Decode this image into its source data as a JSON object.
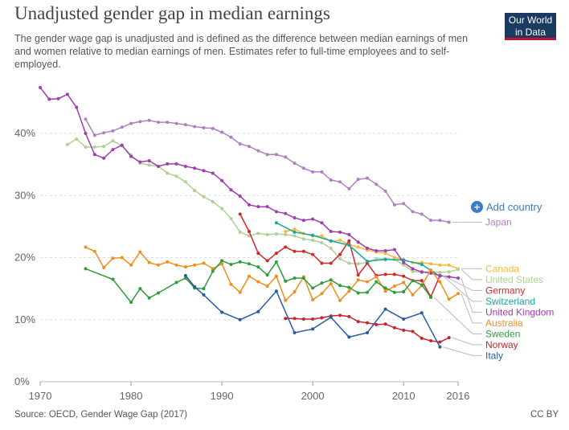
{
  "title": "Unadjusted gender gap in median earnings",
  "subtitle": "The gender wage gap is unadjusted and is defined as the difference between median earnings of men and women relative to median earnings of men. Estimates refer to full-time employees and to self-employed.",
  "logo": {
    "line1": "Our World",
    "line2": "in Data",
    "bg": "#1b3a5f",
    "accent": "#c4122f"
  },
  "add_country": {
    "label": "Add country",
    "icon": "plus-circle-icon",
    "color": "#3a7ec8"
  },
  "source": "Source: OECD, Gender Wage Gap (2017)",
  "license": "CC BY",
  "chart_data": {
    "type": "line",
    "title": "Unadjusted gender gap in median earnings",
    "xlabel": "",
    "ylabel": "",
    "xlim": [
      1970,
      2016
    ],
    "ylim": [
      0,
      45
    ],
    "x_ticks": [
      "1970",
      "1980",
      "1990",
      "2000",
      "2010",
      "2016"
    ],
    "y_ticks": [
      {
        "value": 0,
        "label": "0%"
      },
      {
        "value": 10,
        "label": "10%"
      },
      {
        "value": 20,
        "label": "20%"
      },
      {
        "value": 30,
        "label": "30%"
      },
      {
        "value": 40,
        "label": "40%"
      }
    ],
    "grid": "horizontal dashed",
    "legend": "labels at right end of lines",
    "series": [
      {
        "name": "Japan",
        "color": "#b07fc3",
        "x": [
          1975,
          1976,
          1977,
          1978,
          1979,
          1980,
          1981,
          1982,
          1983,
          1984,
          1985,
          1986,
          1987,
          1988,
          1989,
          1990,
          1991,
          1992,
          1993,
          1994,
          1995,
          1996,
          1997,
          1998,
          1999,
          2000,
          2001,
          2002,
          2003,
          2004,
          2005,
          2006,
          2007,
          2008,
          2009,
          2010,
          2011,
          2012,
          2013,
          2014,
          2015
        ],
        "y": [
          42.3,
          39.7,
          40.1,
          40.4,
          41.0,
          41.6,
          41.9,
          42.1,
          41.8,
          41.8,
          41.6,
          41.4,
          41.1,
          40.9,
          40.8,
          40.2,
          39.4,
          38.3,
          37.9,
          37.2,
          36.6,
          36.6,
          36.2,
          35.2,
          34.4,
          33.8,
          33.8,
          32.5,
          32.2,
          31.1,
          32.6,
          32.8,
          31.8,
          30.7,
          28.5,
          28.7,
          27.4,
          27.0,
          26.0,
          26.0,
          25.7
        ]
      },
      {
        "name": "Canada",
        "color": "#fbb73c",
        "x": [
          1997,
          1998,
          1999,
          2000,
          2001,
          2002,
          2003,
          2004,
          2005,
          2006,
          2007,
          2008,
          2009,
          2010,
          2011,
          2012,
          2013,
          2014,
          2015,
          2016
        ],
        "y": [
          24.2,
          24.6,
          23.9,
          23.5,
          23.5,
          22.6,
          22.8,
          22.1,
          21.7,
          21.2,
          20.9,
          20.7,
          20.0,
          19.7,
          19.2,
          19.2,
          19.0,
          18.8,
          18.8,
          18.2
        ]
      },
      {
        "name": "United States",
        "color": "#aed193",
        "x": [
          1973,
          1974,
          1975,
          1976,
          1977,
          1978,
          1979,
          1980,
          1981,
          1982,
          1983,
          1984,
          1985,
          1986,
          1987,
          1988,
          1989,
          1990,
          1991,
          1992,
          1993,
          1994,
          1995,
          1996,
          1997,
          1998,
          1999,
          2000,
          2001,
          2002,
          2003,
          2004,
          2005,
          2006,
          2007,
          2008,
          2009,
          2010,
          2011,
          2012,
          2013,
          2014,
          2015,
          2016
        ],
        "y": [
          38.2,
          39.1,
          37.8,
          37.8,
          37.9,
          38.8,
          38.0,
          36.5,
          35.2,
          34.9,
          34.7,
          33.6,
          33.1,
          32.2,
          30.8,
          29.8,
          29.0,
          27.9,
          26.3,
          24.1,
          23.5,
          23.9,
          23.7,
          23.8,
          23.7,
          23.5,
          23.0,
          22.8,
          22.4,
          21.5,
          19.8,
          19.1,
          19.0,
          19.2,
          19.8,
          19.8,
          19.7,
          18.8,
          17.8,
          17.6,
          17.8,
          17.6,
          17.7,
          18.1
        ]
      },
      {
        "name": "Germany",
        "color": "#d62728",
        "x": [
          1992,
          1993,
          1994,
          1995,
          1996,
          1997,
          1998,
          1999,
          2000,
          2001,
          2002,
          2003,
          2004,
          2005,
          2006,
          2007,
          2008,
          2009,
          2010,
          2011,
          2012,
          2013,
          2014
        ],
        "y": [
          27.0,
          24.2,
          20.7,
          19.5,
          20.7,
          21.7,
          21.0,
          21.0,
          20.5,
          19.1,
          19.1,
          20.5,
          22.7,
          17.2,
          19.1,
          17.1,
          17.3,
          17.3,
          17.0,
          16.3,
          16.3,
          13.7,
          17.1
        ]
      },
      {
        "name": "Switzerland",
        "color": "#18a6a0",
        "x": [
          1996,
          1998,
          2000,
          2002,
          2004,
          2006,
          2008,
          2010,
          2012,
          2014
        ],
        "y": [
          25.6,
          24.1,
          23.6,
          22.7,
          22.0,
          19.4,
          19.7,
          19.6,
          18.9,
          17.0
        ]
      },
      {
        "name": "United Kingdom",
        "color": "#a13bb0",
        "x": [
          1970,
          1971,
          1972,
          1973,
          1974,
          1975,
          1976,
          1977,
          1978,
          1979,
          1980,
          1981,
          1982,
          1983,
          1984,
          1985,
          1986,
          1987,
          1988,
          1989,
          1990,
          1991,
          1992,
          1993,
          1994,
          1995,
          1996,
          1997,
          1998,
          1999,
          2000,
          2001,
          2002,
          2003,
          2004,
          2005,
          2006,
          2007,
          2008,
          2009,
          2010,
          2011,
          2012,
          2013,
          2014,
          2015,
          2016
        ],
        "y": [
          47.4,
          45.5,
          45.6,
          46.3,
          44.2,
          40.0,
          36.6,
          36.0,
          37.4,
          38.1,
          36.3,
          35.4,
          35.6,
          34.7,
          35.1,
          35.1,
          34.7,
          34.4,
          34.0,
          33.6,
          32.4,
          30.9,
          29.9,
          28.5,
          28.2,
          28.2,
          27.4,
          27.1,
          26.4,
          26.0,
          26.2,
          25.6,
          24.2,
          24.1,
          23.7,
          22.5,
          21.5,
          21.1,
          21.1,
          21.3,
          19.2,
          18.2,
          17.7,
          17.5,
          17.1,
          16.9,
          16.7
        ]
      },
      {
        "name": "Australia",
        "color": "#f28e1c",
        "x": [
          1975,
          1976,
          1977,
          1978,
          1979,
          1980,
          1981,
          1982,
          1983,
          1984,
          1985,
          1986,
          1987,
          1988,
          1989,
          1990,
          1991,
          1992,
          1993,
          1994,
          1995,
          1996,
          1997,
          1998,
          1999,
          2000,
          2001,
          2002,
          2003,
          2004,
          2005,
          2006,
          2007,
          2008,
          2009,
          2010,
          2011,
          2012,
          2013,
          2014,
          2015,
          2016
        ],
        "y": [
          21.7,
          21.0,
          18.4,
          19.9,
          20.0,
          18.8,
          20.9,
          19.2,
          18.8,
          19.3,
          18.8,
          18.5,
          18.8,
          19.1,
          18.2,
          19.0,
          15.7,
          14.4,
          17.0,
          16.1,
          15.4,
          17.0,
          13.1,
          14.5,
          16.9,
          13.2,
          14.2,
          15.8,
          13.1,
          14.6,
          16.4,
          16.1,
          16.9,
          14.6,
          15.4,
          16.0,
          14.0,
          15.5,
          18.0,
          16.1,
          13.3,
          14.2
        ]
      },
      {
        "name": "Sweden",
        "color": "#2e9d3a",
        "x": [
          1975,
          1978,
          1980,
          1981,
          1982,
          1983,
          1985,
          1986,
          1987,
          1988,
          1989,
          1990,
          1991,
          1992,
          1993,
          1994,
          1995,
          1996,
          1997,
          1998,
          1999,
          2000,
          2001,
          2002,
          2003,
          2004,
          2005,
          2006,
          2007,
          2008,
          2009,
          2010,
          2011,
          2012,
          2013
        ],
        "y": [
          18.2,
          16.5,
          12.8,
          15.0,
          13.5,
          14.3,
          16.0,
          16.7,
          15.1,
          15.0,
          17.8,
          19.5,
          18.9,
          19.3,
          19.0,
          18.5,
          17.2,
          19.3,
          16.2,
          16.7,
          16.7,
          15.1,
          15.9,
          16.4,
          15.5,
          15.2,
          14.3,
          14.4,
          16.1,
          15.1,
          14.4,
          14.5,
          16.3,
          15.6,
          13.6
        ]
      },
      {
        "name": "Norway",
        "color": "#c4262e",
        "x": [
          1997,
          1998,
          1999,
          2000,
          2001,
          2002,
          2003,
          2004,
          2005,
          2006,
          2007,
          2008,
          2009,
          2010,
          2011,
          2012,
          2013,
          2014,
          2015
        ],
        "y": [
          10.2,
          10.2,
          10.1,
          10.1,
          10.3,
          10.6,
          10.7,
          10.5,
          9.7,
          9.5,
          9.2,
          9.3,
          8.7,
          8.3,
          8.1,
          7.0,
          6.6,
          6.4,
          7.1
        ]
      },
      {
        "name": "Italy",
        "color": "#2a5ba1",
        "x": [
          1986,
          1987,
          1988,
          1990,
          1992,
          1994,
          1996,
          1998,
          2000,
          2002,
          2004,
          2006,
          2008,
          2010,
          2012,
          2014
        ],
        "y": [
          17.1,
          15.3,
          14.0,
          11.2,
          10.0,
          11.3,
          14.6,
          7.9,
          8.5,
          10.4,
          7.2,
          7.9,
          11.7,
          10.1,
          11.1,
          5.6
        ]
      }
    ]
  }
}
